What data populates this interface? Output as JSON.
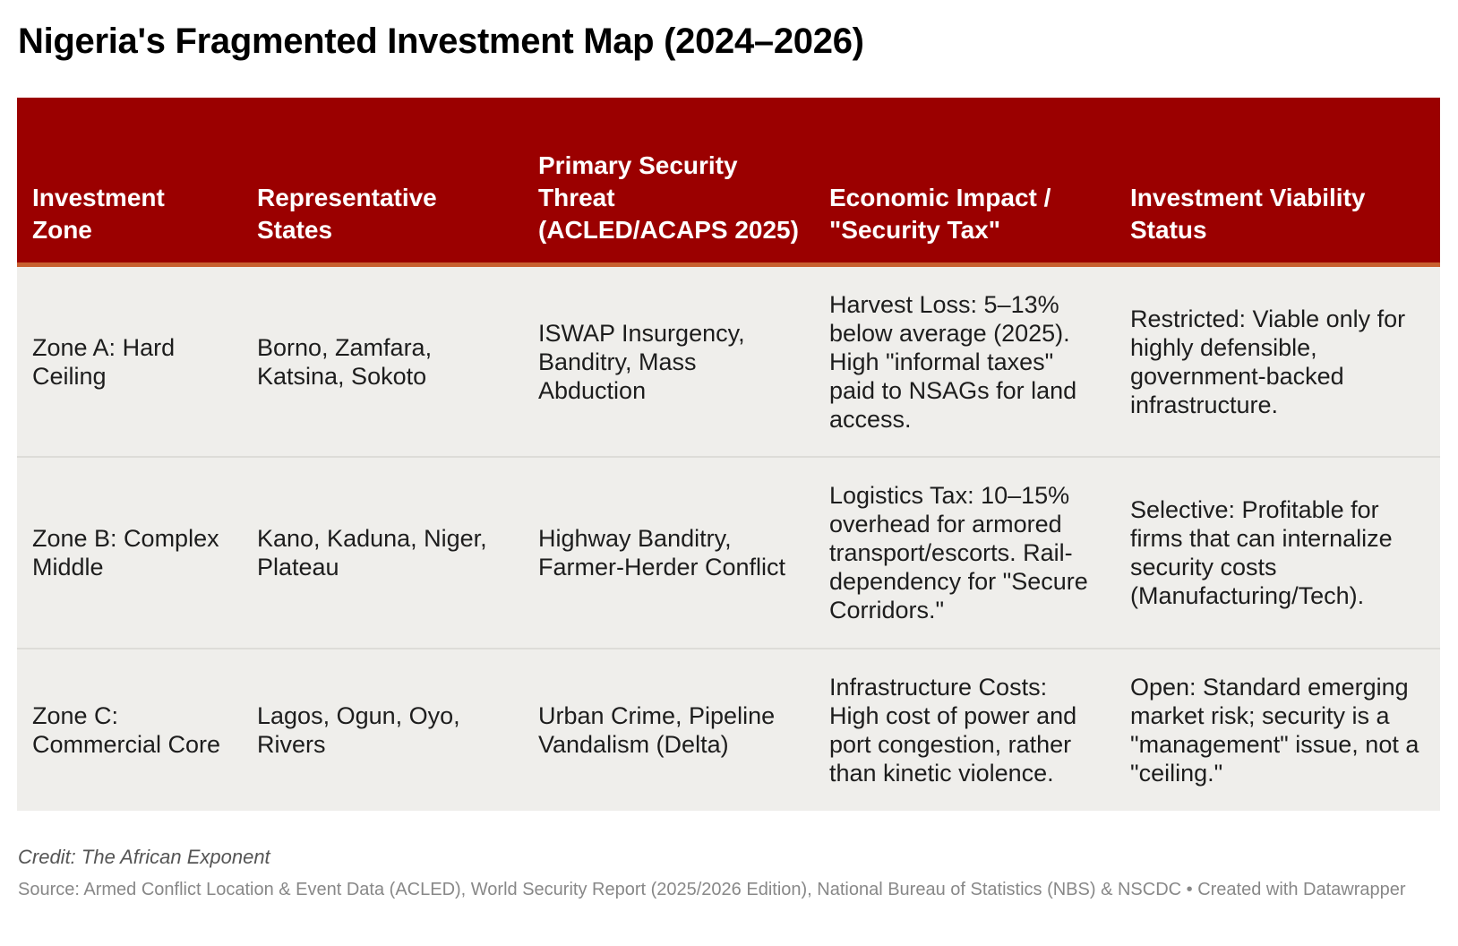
{
  "title": "Nigeria's Fragmented Investment Map (2024–2026)",
  "colors": {
    "header_bg": "#9b0000",
    "header_accent_line": "#c8602f",
    "row_bg": "#efeeeb",
    "row_divider": "#dddcd8"
  },
  "table": {
    "headers": [
      "Investment Zone",
      "Representative States",
      "Primary Security Threat (ACLED/ACAPS 2025)",
      "Economic Impact / \"Security Tax\"",
      "Investment Viability Status"
    ],
    "rows": [
      {
        "zone": "Zone A: Hard Ceiling",
        "states": "Borno, Zamfara, Katsina, Sokoto",
        "threat": "ISWAP Insurgency, Banditry, Mass Abduction",
        "impact": "Harvest Loss: 5–13% below average (2025). High \"informal taxes\" paid to NSAGs for land access.",
        "viability": "Restricted: Viable only for highly defensible, government-backed infrastructure."
      },
      {
        "zone": "Zone B: Complex Middle",
        "states": "Kano, Kaduna, Niger, Plateau",
        "threat": "Highway Banditry, Farmer-Herder Conflict",
        "impact": "Logistics Tax: 10–15% overhead for armored transport/escorts. Rail-dependency for \"Secure Corridors.\"",
        "viability": "Selective: Profitable for firms that can internalize security costs (Manufacturing/Tech)."
      },
      {
        "zone": "Zone C: Commercial Core",
        "states": "Lagos, Ogun, Oyo, Rivers",
        "threat": "Urban Crime, Pipeline Vandalism (Delta)",
        "impact": "Infrastructure Costs: High cost of power and port congestion, rather than kinetic violence.",
        "viability": "Open: Standard emerging market risk; security is a \"management\" issue, not a \"ceiling.\""
      }
    ]
  },
  "footer": {
    "credit": "Credit: The African Exponent",
    "source": "Source: Armed Conflict Location & Event Data (ACLED), World Security Report (2025/2026 Edition), National Bureau of Statistics (NBS) & NSCDC • Created with Datawrapper"
  }
}
